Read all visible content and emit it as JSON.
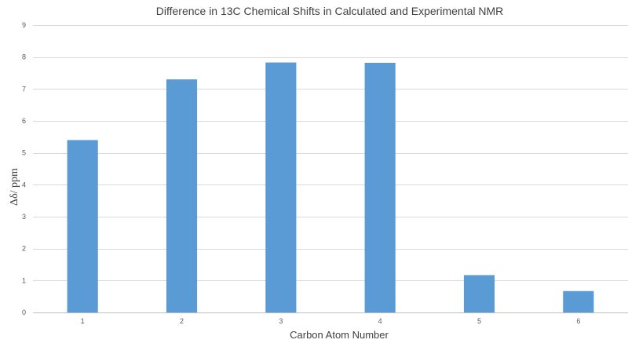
{
  "chart_data": {
    "type": "bar",
    "title": "Difference in 13C Chemical Shifts in Calculated and Experimental NMR",
    "xlabel": "Carbon Atom Number",
    "ylabel": "Δδ/ ppm",
    "categories": [
      "1",
      "2",
      "3",
      "4",
      "5",
      "6"
    ],
    "values": [
      5.4,
      7.3,
      7.83,
      7.82,
      1.17,
      0.67
    ],
    "ylim": [
      0,
      9
    ],
    "yticks": [
      0,
      1,
      2,
      3,
      4,
      5,
      6,
      7,
      8,
      9
    ],
    "grid": true,
    "legend": "none",
    "bar_color": "#5b9bd5"
  }
}
